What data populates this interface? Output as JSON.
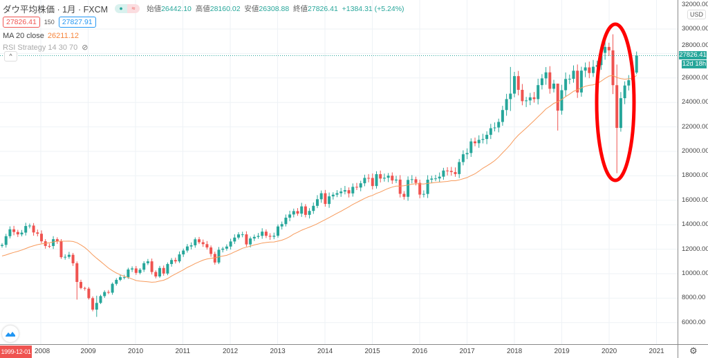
{
  "header": {
    "symbol_title": "ダウ平均株価 · 1月 · FXCM",
    "status_dot": "●",
    "status_wave": "≈",
    "ohlc": {
      "open_label": "始値",
      "open": "26442.10",
      "high_label": "高値",
      "high": "28160.02",
      "low_label": "安値",
      "low": "26308.88",
      "close_label": "終値",
      "close": "27826.41",
      "change": "+1384.31 (+5.24%)"
    },
    "bid": "27826.41",
    "spread": "150",
    "ask": "27827.91",
    "ma_label": "MA 20 close",
    "ma_value": "26211.12",
    "rsi_label": "RSI Strategy 14 30 70",
    "collapse_glyph": "^"
  },
  "price_axis": {
    "currency": "USD",
    "top_partial": "32000.00",
    "labels": [
      "30000.00",
      "28000.00",
      "26000.00",
      "24000.00",
      "22000.00",
      "20000.00",
      "18000.00",
      "16000.00",
      "14000.00",
      "12000.00",
      "10000.00",
      "8000.00",
      "6000.00"
    ],
    "last_price": "27826.41",
    "countdown": "12d 18h"
  },
  "time_axis": {
    "labels": [
      "2008",
      "2009",
      "2010",
      "2011",
      "2012",
      "2013",
      "2014",
      "2015",
      "2016",
      "2017",
      "2018",
      "2019",
      "2020",
      "2021"
    ],
    "cursor_date": "1999-12-01"
  },
  "colors": {
    "up": "#26a69a",
    "down": "#ef5350",
    "ma": "#f79a5b",
    "annotation": "#ff0000"
  },
  "chart_data": {
    "type": "candlestick",
    "interval": "1M",
    "start": "2007-03",
    "first_open": 12270,
    "closes": [
      12354,
      13063,
      13628,
      13409,
      13212,
      13358,
      13896,
      13930,
      13372,
      13265,
      12650,
      12266,
      12263,
      12820,
      12638,
      11350,
      11378,
      11544,
      10851,
      9325,
      8829,
      8776,
      8001,
      7063,
      7609,
      8168,
      8500,
      8447,
      9172,
      9496,
      9712,
      9713,
      10345,
      10428,
      10067,
      10325,
      10857,
      11009,
      10137,
      9774,
      10466,
      10015,
      10788,
      11118,
      11006,
      11578,
      11892,
      12226,
      12320,
      12811,
      12570,
      12414,
      12143,
      11614,
      10913,
      11955,
      12046,
      12218,
      12633,
      12952,
      13212,
      13214,
      12393,
      12880,
      13009,
      13091,
      13437,
      13096,
      13026,
      13104,
      13861,
      14054,
      14579,
      14840,
      15116,
      14910,
      15500,
      14810,
      15130,
      15546,
      16086,
      16577,
      15699,
      16322,
      16458,
      16581,
      16717,
      16827,
      16563,
      17098,
      17043,
      17391,
      17828,
      17823,
      17165,
      18133,
      17776,
      17841,
      18011,
      17620,
      17690,
      16528,
      16285,
      17664,
      17720,
      17425,
      16466,
      16517,
      17685,
      17774,
      17787,
      17930,
      18432,
      18401,
      18308,
      18142,
      19124,
      19763,
      19864,
      20812,
      20663,
      20941,
      21009,
      21350,
      21891,
      21948,
      22405,
      23377,
      24272,
      24719,
      26149,
      25029,
      24103,
      24163,
      24416,
      24271,
      25415,
      25965,
      26458,
      25116,
      25538,
      23327,
      24999,
      25916,
      25929,
      26593,
      24815,
      26600,
      26864,
      26403,
      26917,
      27046,
      28051,
      28538,
      28256,
      25409,
      21917,
      24346,
      25383,
      25813,
      26442,
      27826
    ],
    "wick_overrides": {
      "19": [
        11000,
        7880
      ],
      "24": [
        8200,
        6470
      ],
      "129": [
        26900,
        23300
      ],
      "141": [
        25000,
        21700
      ],
      "155": [
        29568,
        24680
      ],
      "156": [
        27100,
        18214
      ],
      "161": [
        28160,
        26309
      ]
    },
    "ma_period": 20,
    "ma_seed": 11400,
    "yrange": [
      5000,
      32500
    ],
    "annotation": "ellipse around 2020 crash"
  }
}
